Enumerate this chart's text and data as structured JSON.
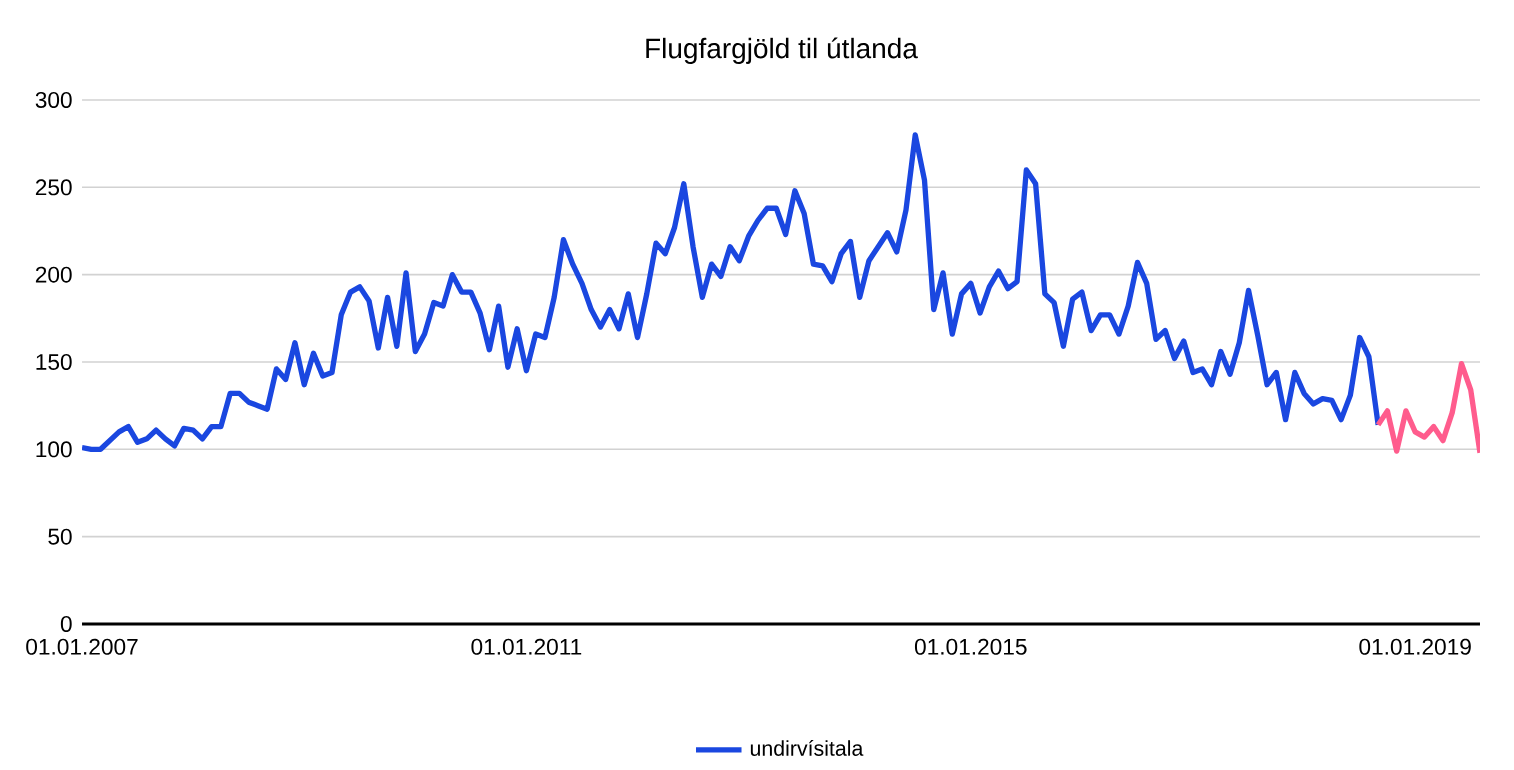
{
  "chart_data": {
    "type": "line",
    "title": "Flugfargjöld til útlanda",
    "categories": [
      "01.01.2007",
      null,
      null,
      null,
      null,
      null,
      null,
      null,
      null,
      null,
      null,
      null,
      null,
      null,
      null,
      null,
      null,
      null,
      null,
      null,
      null,
      null,
      null,
      null,
      null,
      null,
      null,
      null,
      null,
      null,
      null,
      null,
      null,
      null,
      null,
      null,
      null,
      null,
      null,
      null,
      null,
      null,
      null,
      null,
      null,
      null,
      null,
      null,
      "01.01.2011",
      null,
      null,
      null,
      null,
      null,
      null,
      null,
      null,
      null,
      null,
      null,
      null,
      null,
      null,
      null,
      null,
      null,
      null,
      null,
      null,
      null,
      null,
      null,
      null,
      null,
      null,
      null,
      null,
      null,
      null,
      null,
      null,
      null,
      null,
      null,
      null,
      null,
      null,
      null,
      null,
      null,
      null,
      null,
      null,
      null,
      null,
      null,
      "01.01.2015",
      null,
      null,
      null,
      null,
      null,
      null,
      null,
      null,
      null,
      null,
      null,
      null,
      null,
      null,
      null,
      null,
      null,
      null,
      null,
      null,
      null,
      null,
      null,
      null,
      null,
      null,
      null,
      null,
      null,
      null,
      null,
      null,
      null,
      null,
      null,
      null,
      null,
      null,
      null,
      null,
      null,
      null,
      null,
      null,
      null,
      null,
      null,
      "01.01.2019",
      null,
      null,
      null,
      null,
      null,
      null,
      null
    ],
    "series": [
      {
        "name": "undirvísitala",
        "color": "#1a47e0",
        "values": [
          101,
          100,
          100,
          105,
          110,
          113,
          104,
          106,
          111,
          106,
          102,
          112,
          111,
          106,
          113,
          113,
          132,
          132,
          127,
          125,
          123,
          146,
          140,
          161,
          137,
          155,
          142,
          144,
          177,
          190,
          193,
          185,
          158,
          187,
          159,
          201,
          156,
          166,
          184,
          182,
          200,
          190,
          190,
          178,
          157,
          182,
          147,
          169,
          145,
          166,
          164,
          187,
          220,
          206,
          195,
          180,
          170,
          180,
          169,
          189,
          164,
          189,
          218,
          212,
          227,
          252,
          216,
          187,
          206,
          199,
          216,
          208,
          222,
          231,
          238,
          238,
          223,
          248,
          235,
          206,
          205,
          196,
          212,
          219,
          187,
          208,
          216,
          224,
          213,
          237,
          280,
          254,
          180,
          201,
          166,
          189,
          195,
          178,
          193,
          202,
          192,
          196,
          260,
          252,
          189,
          184,
          159,
          186,
          190,
          168,
          177,
          177,
          166,
          182,
          207,
          195,
          163,
          168,
          152,
          162,
          144,
          146,
          137,
          156,
          143,
          161,
          191,
          165,
          137,
          144,
          117,
          144,
          132,
          126,
          129,
          128,
          117,
          131,
          164,
          153,
          114,
          null,
          null,
          null,
          null,
          null,
          null,
          null,
          null,
          null,
          null,
          null
        ]
      },
      {
        "color": "#ff5c8d",
        "values": [
          null,
          null,
          null,
          null,
          null,
          null,
          null,
          null,
          null,
          null,
          null,
          null,
          null,
          null,
          null,
          null,
          null,
          null,
          null,
          null,
          null,
          null,
          null,
          null,
          null,
          null,
          null,
          null,
          null,
          null,
          null,
          null,
          null,
          null,
          null,
          null,
          null,
          null,
          null,
          null,
          null,
          null,
          null,
          null,
          null,
          null,
          null,
          null,
          null,
          null,
          null,
          null,
          null,
          null,
          null,
          null,
          null,
          null,
          null,
          null,
          null,
          null,
          null,
          null,
          null,
          null,
          null,
          null,
          null,
          null,
          null,
          null,
          null,
          null,
          null,
          null,
          null,
          null,
          null,
          null,
          null,
          null,
          null,
          null,
          null,
          null,
          null,
          null,
          null,
          null,
          null,
          null,
          null,
          null,
          null,
          null,
          null,
          null,
          null,
          null,
          null,
          null,
          null,
          null,
          null,
          null,
          null,
          null,
          null,
          null,
          null,
          null,
          null,
          null,
          null,
          null,
          null,
          null,
          null,
          null,
          null,
          null,
          null,
          null,
          null,
          null,
          null,
          null,
          null,
          null,
          null,
          null,
          null,
          null,
          null,
          null,
          null,
          null,
          null,
          null,
          114,
          122,
          99,
          122,
          110,
          107,
          113,
          105,
          121,
          149,
          134,
          98
        ]
      }
    ],
    "ylim": [
      0,
      300
    ],
    "yticks": [
      0,
      50,
      100,
      150,
      200,
      250,
      300
    ],
    "grid": "y",
    "legend": "bottom"
  }
}
